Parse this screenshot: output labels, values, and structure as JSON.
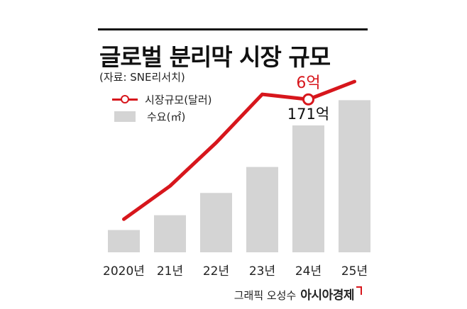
{
  "header": {
    "title": "글로벌 분리막 시장 규모",
    "source": "(자료: SNE리서치)"
  },
  "legend": {
    "line_label": "시장규모(달러)",
    "bar_label": "수요(㎡)"
  },
  "footer": {
    "byline": "그래픽 오성수",
    "brand": "아시아경제"
  },
  "colors": {
    "line": "#d7161c",
    "bar": "#d4d4d4",
    "text": "#222222"
  },
  "chart_data": {
    "type": "bar",
    "categories": [
      "2020년",
      "21년",
      "22년",
      "23년",
      "24년",
      "25년"
    ],
    "series": [
      {
        "name": "수요(㎡)",
        "type": "bar",
        "values": [
          30,
          50,
          80,
          115,
          171,
          205
        ]
      },
      {
        "name": "시장규모(달러)",
        "type": "line",
        "values": [
          1.3,
          2.6,
          4.3,
          6.2,
          6,
          6.7
        ]
      }
    ],
    "annotations": [
      {
        "series": "시장규모(달러)",
        "category": "24년",
        "text": "6억"
      },
      {
        "series": "수요(㎡)",
        "category": "24년",
        "text": "171억"
      }
    ],
    "bar_ylim": [
      0,
      340
    ],
    "line_ylim": [
      0,
      9.9
    ],
    "grid": false
  }
}
